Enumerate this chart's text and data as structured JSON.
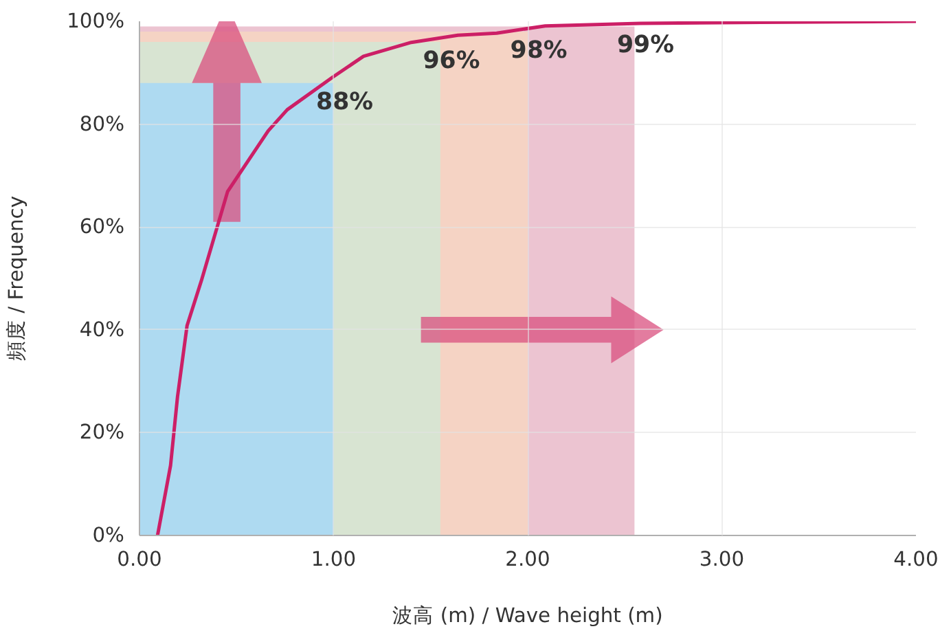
{
  "chart_data": {
    "type": "line",
    "xlabel": "波高 (m) / Wave height (m)",
    "ylabel": "頻度 / Frequency",
    "xlim": [
      0,
      4
    ],
    "ylim": [
      0,
      100
    ],
    "xticks": [
      {
        "value": 0,
        "label": "0.00"
      },
      {
        "value": 1,
        "label": "1.00"
      },
      {
        "value": 2,
        "label": "2.00"
      },
      {
        "value": 3,
        "label": "3.00"
      },
      {
        "value": 4,
        "label": "4.00"
      }
    ],
    "yticks": [
      {
        "value": 0,
        "label": "0%"
      },
      {
        "value": 20,
        "label": "20%"
      },
      {
        "value": 40,
        "label": "40%"
      },
      {
        "value": 60,
        "label": "60%"
      },
      {
        "value": 80,
        "label": "80%"
      },
      {
        "value": 100,
        "label": "100%"
      }
    ],
    "grid": true,
    "marker": "none",
    "line_style": "solid",
    "series": [
      {
        "type": "area",
        "color": "#ecc4d1",
        "x": [
          0,
          2.55
        ],
        "values": [
          99,
          99
        ]
      },
      {
        "type": "area",
        "color": "#f5d3c4",
        "x": [
          0,
          2.0
        ],
        "values": [
          98,
          98
        ]
      },
      {
        "type": "area",
        "color": "#d8e4d2",
        "x": [
          0,
          1.55
        ],
        "values": [
          96,
          96
        ]
      },
      {
        "type": "area",
        "color": "#aedaf1",
        "x": [
          0,
          1.0
        ],
        "values": [
          88,
          88
        ]
      },
      {
        "color": "#cc1f66",
        "x": [
          0.093,
          0.16,
          0.196,
          0.245,
          0.32,
          0.454,
          0.663,
          0.761,
          0.994,
          1.154,
          1.4,
          1.64,
          1.84,
          2.09,
          2.58,
          3.2,
          4.0
        ],
        "values": [
          0,
          13.6,
          27,
          40.8,
          49.7,
          66.9,
          78.7,
          82.8,
          89.1,
          93.2,
          95.9,
          97.3,
          97.7,
          99.1,
          99.6,
          99.8,
          100
        ]
      }
    ],
    "annotations": [
      {
        "text": "88%",
        "x": 1.0,
        "y": 88
      },
      {
        "text": "96%",
        "x": 1.55,
        "y": 96
      },
      {
        "text": "98%",
        "x": 2.0,
        "y": 98
      },
      {
        "text": "99%",
        "x": 2.55,
        "y": 99
      }
    ]
  }
}
